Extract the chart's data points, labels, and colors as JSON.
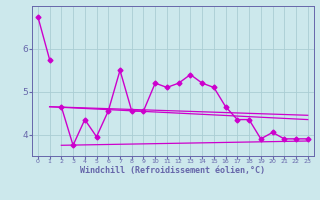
{
  "background_color": "#cce8ec",
  "grid_color": "#aacdd4",
  "line_color": "#cc00cc",
  "spine_color": "#6666aa",
  "xlim": [
    -0.5,
    23.5
  ],
  "ylim": [
    3.5,
    7.0
  ],
  "yticks": [
    4,
    5,
    6
  ],
  "xticks": [
    0,
    1,
    2,
    3,
    4,
    5,
    6,
    7,
    8,
    9,
    10,
    11,
    12,
    13,
    14,
    15,
    16,
    17,
    18,
    19,
    20,
    21,
    22,
    23
  ],
  "xlabel": "Windchill (Refroidissement éolien,°C)",
  "xlabel_fontsize": 6.0,
  "series": [
    {
      "x": [
        0,
        1
      ],
      "y": [
        6.75,
        5.75
      ],
      "marker": "D",
      "markersize": 2.5,
      "linestyle": "-",
      "linewidth": 1.0
    },
    {
      "x": [
        2,
        3,
        4,
        5,
        6,
        7,
        8,
        9,
        10,
        11,
        12,
        13,
        14,
        15,
        16,
        17,
        18,
        19,
        20,
        21,
        22,
        23
      ],
      "y": [
        4.65,
        3.75,
        4.35,
        3.95,
        4.55,
        5.5,
        4.55,
        4.55,
        5.2,
        5.1,
        5.2,
        5.4,
        5.2,
        5.1,
        4.65,
        4.35,
        4.35,
        3.9,
        4.05,
        3.9,
        3.9,
        3.9
      ],
      "marker": "D",
      "markersize": 2.5,
      "linestyle": "-",
      "linewidth": 1.0
    },
    {
      "x": [
        1,
        23
      ],
      "y": [
        4.65,
        4.35
      ],
      "marker": null,
      "markersize": 0,
      "linestyle": "-",
      "linewidth": 0.9
    },
    {
      "x": [
        1,
        23
      ],
      "y": [
        4.65,
        4.45
      ],
      "marker": null,
      "markersize": 0,
      "linestyle": "-",
      "linewidth": 0.9
    },
    {
      "x": [
        2,
        23
      ],
      "y": [
        3.75,
        3.85
      ],
      "marker": null,
      "markersize": 0,
      "linestyle": "-",
      "linewidth": 0.9
    }
  ]
}
